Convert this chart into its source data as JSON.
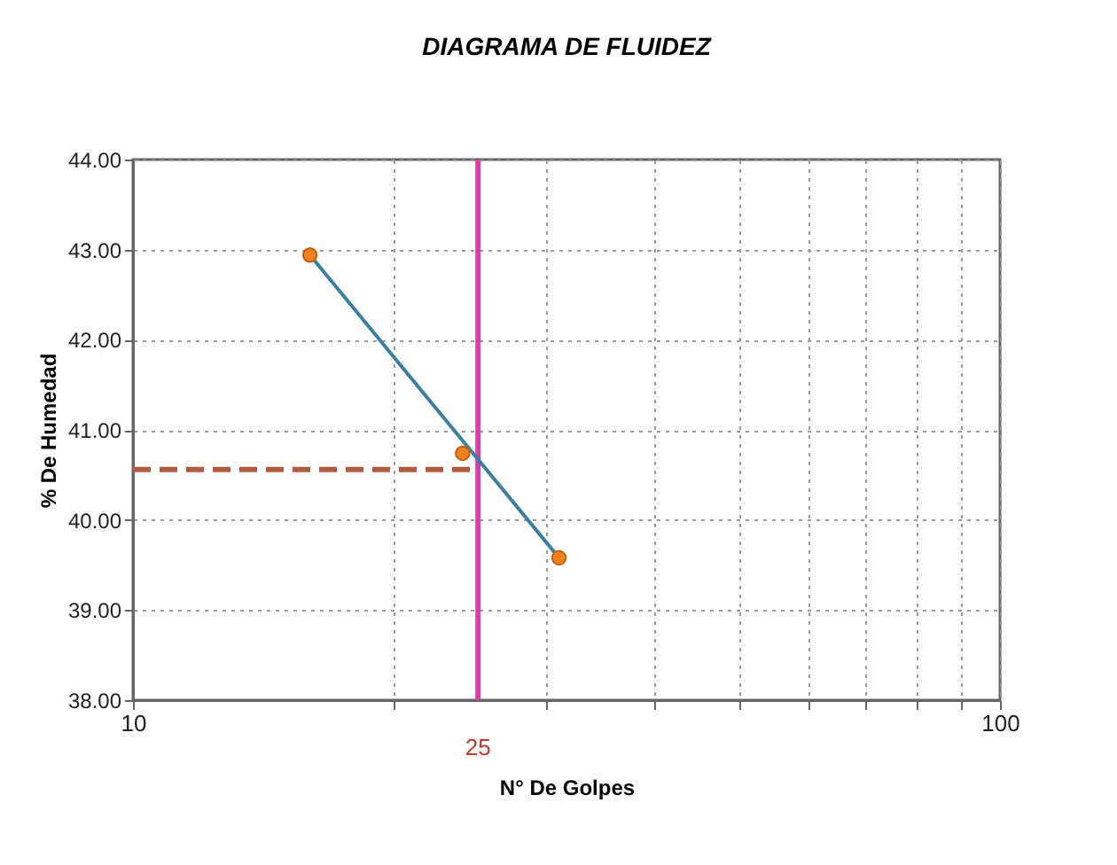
{
  "chart_data": {
    "type": "scatter",
    "title": "DIAGRAMA DE FLUIDEZ",
    "xlabel": "N° De Golpes",
    "ylabel": "% De Humedad",
    "log": "x",
    "xlim": [
      10,
      100
    ],
    "xticks": [
      10,
      {
        "value": 20,
        "label": null
      },
      {
        "value": 30,
        "label": null
      },
      {
        "value": 40,
        "label": null
      },
      {
        "value": 50,
        "label": null
      },
      {
        "value": 60,
        "label": null
      },
      {
        "value": 70,
        "label": null
      },
      {
        "value": 80,
        "label": null
      },
      {
        "value": 90,
        "label": null
      },
      100
    ],
    "ylim": [
      38,
      44
    ],
    "yticks": [
      {
        "value": 38,
        "label": "38.00"
      },
      {
        "value": 39,
        "label": "39.00"
      },
      {
        "value": 40,
        "label": "40.00"
      },
      {
        "value": 41,
        "label": "41.00"
      },
      {
        "value": 42,
        "label": "42.00"
      },
      {
        "value": 43,
        "label": "43.00"
      },
      {
        "value": 44,
        "label": "44.00"
      }
    ],
    "grid": true,
    "series": [
      {
        "type": "line",
        "color": "#3a7fa0",
        "x": [
          16,
          31
        ],
        "values": [
          42.94,
          39.58
        ],
        "marker": "none",
        "line_style": "solid"
      },
      {
        "type": "scatter",
        "color": "#f08020",
        "x": [
          16,
          24,
          31
        ],
        "values": [
          42.94,
          40.74,
          39.58
        ],
        "marker": "circle"
      }
    ],
    "ref_lines": [
      {
        "axis": "x",
        "value": 25,
        "label": "25",
        "color": "#d63fa8",
        "line_style": "solid"
      },
      {
        "axis": "y",
        "value": 40.56,
        "label": null,
        "color": "#b05a40",
        "line_style": "dashed"
      }
    ]
  }
}
